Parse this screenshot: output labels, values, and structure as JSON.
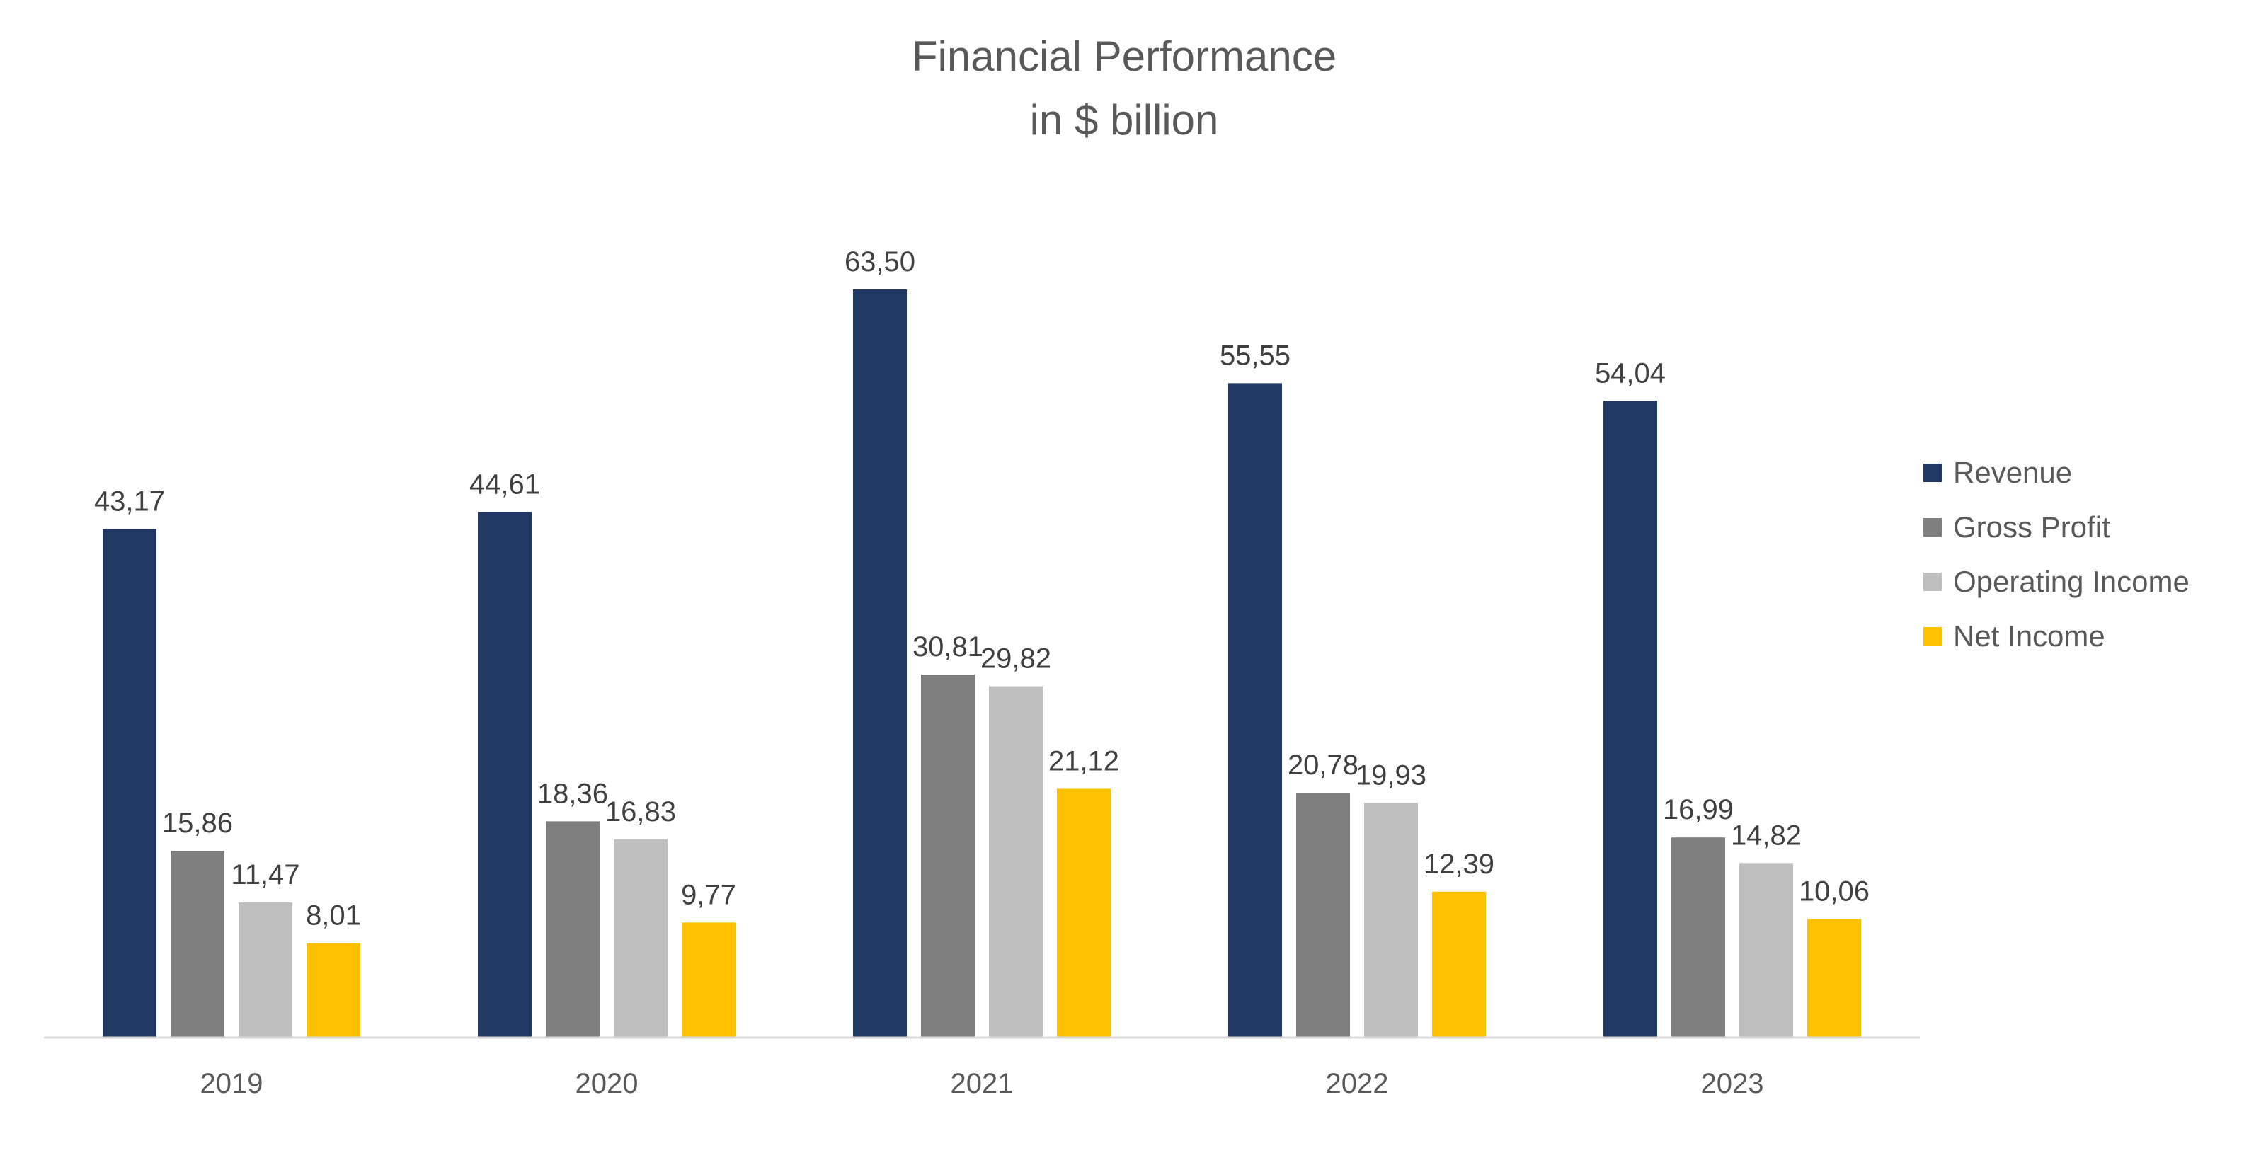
{
  "chart_data": {
    "type": "bar",
    "title": "Financial Performance",
    "subtitle": "in $ billion",
    "xlabel": "",
    "ylabel": "",
    "categories": [
      "2019",
      "2020",
      "2021",
      "2022",
      "2023"
    ],
    "series": [
      {
        "name": "Revenue",
        "color": "#203864",
        "values": [
          43.17,
          44.61,
          63.5,
          55.55,
          54.04
        ],
        "labels": [
          "43,17",
          "44,61",
          "63,50",
          "55,55",
          "54,04"
        ]
      },
      {
        "name": "Gross Profit",
        "color": "#7f7f7f",
        "values": [
          15.86,
          18.36,
          30.81,
          20.78,
          16.99
        ],
        "labels": [
          "15,86",
          "18,36",
          "30,81",
          "20,78",
          "16,99"
        ]
      },
      {
        "name": "Operating Income",
        "color": "#bfbfbf",
        "values": [
          11.47,
          16.83,
          29.82,
          19.93,
          14.82
        ],
        "labels": [
          "11,47",
          "16,83",
          "29,82",
          "19,93",
          "14,82"
        ]
      },
      {
        "name": "Net Income",
        "color": "#ffc000",
        "values": [
          8.01,
          9.77,
          21.12,
          12.39,
          10.06
        ],
        "labels": [
          "8,01",
          "9,77",
          "21,12",
          "12,39",
          "10,06"
        ]
      }
    ],
    "ylim": [
      0,
      65
    ],
    "grid": false,
    "legend": "right"
  }
}
